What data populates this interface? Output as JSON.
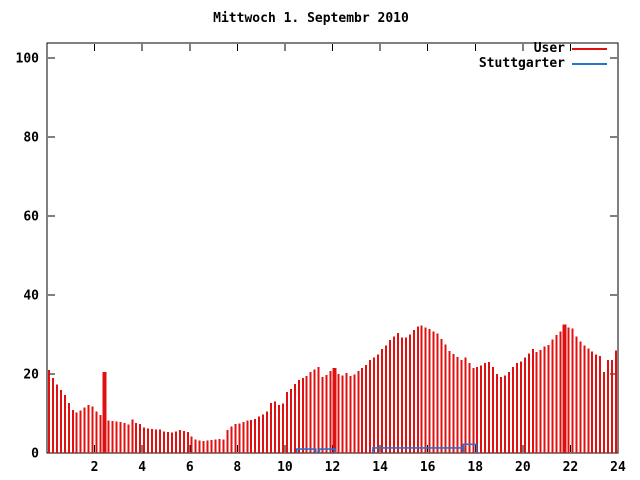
{
  "title": "Mittwoch 1. Septembr 2010",
  "colors": {
    "background": "#ffffff",
    "axis": "#000000",
    "text": "#000000",
    "user_red": "#e01010",
    "stuttgarter_blue": "#2673d2"
  },
  "legend": {
    "position": "top-right-inside",
    "items": [
      {
        "label": "User"
      },
      {
        "label": "Stuttgarter"
      }
    ]
  },
  "chart_data": {
    "type": "bar",
    "title": "Mittwoch 1. Septembr 2010",
    "xlabel": "",
    "ylabel": "",
    "x_unit": "hour-of-day",
    "interval_minutes": 10,
    "xlim": [
      0,
      24
    ],
    "ylim": [
      0,
      104
    ],
    "x_ticks": [
      2,
      4,
      6,
      8,
      10,
      12,
      14,
      16,
      18,
      20,
      22,
      24
    ],
    "y_ticks": [
      0,
      20,
      40,
      60,
      80,
      100
    ],
    "grid": false,
    "series": [
      {
        "name": "User",
        "type": "bar",
        "color": "#e01010",
        "values": [
          21,
          19,
          17.3,
          16,
          14.7,
          12.6,
          10.9,
          10.2,
          10.8,
          11.5,
          12.2,
          11.8,
          10.5,
          9.6,
          20.5,
          8.2,
          8.1,
          8,
          7.8,
          7.6,
          7.2,
          8.5,
          7.6,
          7.3,
          6.4,
          6.2,
          6.1,
          6,
          5.9,
          5.5,
          5.3,
          5.2,
          5.4,
          5.8,
          5.6,
          5.3,
          4.2,
          3.4,
          3.2,
          3.1,
          3.2,
          3.3,
          3.4,
          3.5,
          3.4,
          5.8,
          6.7,
          7.3,
          7.5,
          7.8,
          8.2,
          8.4,
          8.6,
          9.2,
          9.8,
          10.5,
          12.6,
          13,
          12.2,
          12.5,
          15.5,
          16.2,
          17.5,
          18.5,
          19,
          19.5,
          20.5,
          21.2,
          21.8,
          19.2,
          19.8,
          20.8,
          21.5,
          20,
          19.6,
          20.3,
          19.5,
          19.9,
          20.8,
          21.5,
          22.3,
          23.5,
          24.2,
          25,
          26.3,
          27.2,
          28.6,
          29.5,
          30.4,
          29.3,
          29.2,
          30,
          31.2,
          32,
          32.3,
          31.8,
          31.4,
          30.8,
          30.2,
          28.8,
          27.5,
          25.8,
          25.1,
          24.3,
          23.6,
          24.2,
          22.8,
          21.5,
          21.8,
          22.2,
          22.8,
          23.1,
          21.8,
          20,
          19.2,
          19.6,
          20.5,
          21.8,
          22.8,
          23.2,
          24.2,
          25.2,
          26.3,
          25.6,
          26.1,
          27,
          27.4,
          28.7,
          29.9,
          30.8,
          32.5,
          31.8,
          31.5,
          29.5,
          28.2,
          27.2,
          26.5,
          25.7,
          25,
          24.5,
          20.5,
          23.5,
          23.5,
          26
        ]
      },
      {
        "name": "Stuttgarter",
        "type": "step-line",
        "color": "#2673d2",
        "segments": [
          [
            10.5,
            11.3,
            1.0
          ],
          [
            11.45,
            12.1,
            1.0
          ],
          [
            13.7,
            17.5,
            1.3
          ],
          [
            17.5,
            18.05,
            2.2
          ]
        ]
      }
    ],
    "spike_slots": [
      14,
      72,
      130
    ]
  }
}
